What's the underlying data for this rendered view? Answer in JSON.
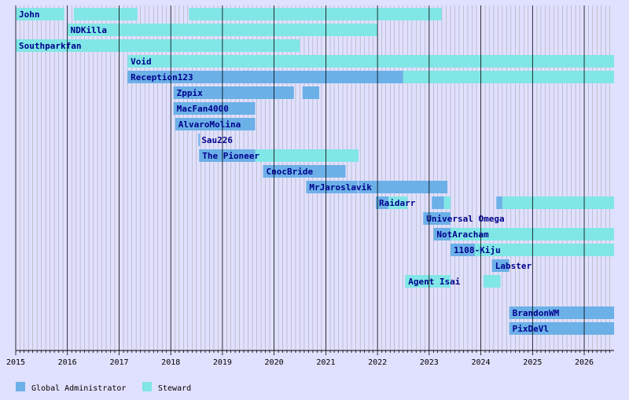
{
  "chart_data": {
    "type": "timeline",
    "x_axis": {
      "range": [
        "2015-01-01",
        "2026-07-31"
      ],
      "ticks": [
        "2015",
        "2016",
        "2017",
        "2018",
        "2019",
        "2020",
        "2021",
        "2022",
        "2023",
        "2024",
        "2025",
        "2026"
      ],
      "minor_grid": "monthly",
      "major_grid": "yearly"
    },
    "legend": {
      "placement": "bottom-left",
      "items": [
        {
          "key": "ga",
          "label": "Global Administrator",
          "color": "#6cb0e8"
        },
        {
          "key": "steward",
          "label": "Steward",
          "color": "#80e6e6"
        }
      ]
    },
    "colors": {
      "background": "#e0e0ff",
      "label_text": "#00008b",
      "ga": "#6cb0e8",
      "steward": "#80e6e6"
    },
    "rows": [
      {
        "name": "John",
        "periods": [
          {
            "role": "steward",
            "start": "2015-01-01",
            "end": "2015-12-10"
          },
          {
            "role": "steward",
            "start": "2016-02-15",
            "end": "2017-05-10"
          },
          {
            "role": "steward",
            "start": "2018-05-10",
            "end": "2023-03-30"
          }
        ]
      },
      {
        "name": "NDKilla",
        "periods": [
          {
            "role": "steward",
            "start": "2016-01-01",
            "end": "2022-01-01"
          }
        ]
      },
      {
        "name": "Southparkfan",
        "periods": [
          {
            "role": "steward",
            "start": "2015-01-01",
            "end": "2020-07-01"
          }
        ]
      },
      {
        "name": "Void",
        "periods": [
          {
            "role": "steward",
            "start": "2017-03-01",
            "end": "2026-07-31"
          }
        ]
      },
      {
        "name": "Reception123",
        "periods": [
          {
            "role": "ga",
            "start": "2017-03-01",
            "end": "2022-07-01"
          },
          {
            "role": "steward",
            "start": "2022-07-01",
            "end": "2026-07-31"
          }
        ]
      },
      {
        "name": "Zppix",
        "periods": [
          {
            "role": "ga",
            "start": "2018-01-20",
            "end": "2020-05-20"
          },
          {
            "role": "ga",
            "start": "2020-07-20",
            "end": "2020-11-15"
          }
        ]
      },
      {
        "name": "MacFan4000",
        "periods": [
          {
            "role": "ga",
            "start": "2018-01-20",
            "end": "2019-08-20"
          }
        ]
      },
      {
        "name": "AlvaroMolina",
        "periods": [
          {
            "role": "ga",
            "start": "2018-02-01",
            "end": "2019-08-20"
          }
        ]
      },
      {
        "name": "Sau226",
        "periods": [
          {
            "role": "ga",
            "start": "2018-07-15",
            "end": "2018-07-25"
          }
        ]
      },
      {
        "name": "The Pioneer",
        "periods": [
          {
            "role": "ga",
            "start": "2018-07-20",
            "end": "2019-08-20"
          },
          {
            "role": "steward",
            "start": "2019-08-20",
            "end": "2021-08-20"
          }
        ]
      },
      {
        "name": "CnocBride",
        "periods": [
          {
            "role": "ga",
            "start": "2019-10-15",
            "end": "2021-05-20"
          }
        ]
      },
      {
        "name": "MrJaroslavik",
        "periods": [
          {
            "role": "ga",
            "start": "2020-08-15",
            "end": "2021-08-15"
          },
          {
            "role": "ga",
            "start": "2021-08-20",
            "end": "2023-05-10"
          }
        ]
      },
      {
        "name": "Raidarr",
        "periods": [
          {
            "role": "ga",
            "start": "2021-12-20",
            "end": "2022-03-20"
          },
          {
            "role": "steward",
            "start": "2022-03-20",
            "end": "2022-08-01"
          },
          {
            "role": "ga",
            "start": "2023-01-20",
            "end": "2023-04-15"
          },
          {
            "role": "steward",
            "start": "2023-04-15",
            "end": "2023-06-01"
          },
          {
            "role": "ga",
            "start": "2024-04-20",
            "end": "2024-06-01"
          },
          {
            "role": "steward",
            "start": "2024-06-01",
            "end": "2026-07-31"
          }
        ]
      },
      {
        "name": "Universal Omega",
        "periods": [
          {
            "role": "ga",
            "start": "2022-11-20",
            "end": "2023-06-01"
          }
        ]
      },
      {
        "name": "NotAracham",
        "periods": [
          {
            "role": "ga",
            "start": "2023-02-01",
            "end": "2023-06-01"
          },
          {
            "role": "steward",
            "start": "2023-06-01",
            "end": "2026-07-31"
          }
        ]
      },
      {
        "name": "1108-Kiju",
        "periods": [
          {
            "role": "ga",
            "start": "2023-06-01",
            "end": "2023-11-20"
          },
          {
            "role": "steward",
            "start": "2023-11-20",
            "end": "2026-07-31"
          }
        ]
      },
      {
        "name": "Labster",
        "periods": [
          {
            "role": "ga",
            "start": "2024-03-20",
            "end": "2024-07-20"
          }
        ]
      },
      {
        "name": "Agent Isai",
        "periods": [
          {
            "role": "steward",
            "start": "2022-07-15",
            "end": "2023-06-01"
          },
          {
            "role": "steward",
            "start": "2024-01-20",
            "end": "2024-05-20"
          }
        ]
      },
      {
        "name": "",
        "periods": []
      },
      {
        "name": "BrandonWM",
        "periods": [
          {
            "role": "ga",
            "start": "2024-07-20",
            "end": "2026-07-31"
          }
        ]
      },
      {
        "name": "PixDeVl",
        "periods": [
          {
            "role": "ga",
            "start": "2024-07-20",
            "end": "2026-07-31"
          }
        ]
      }
    ]
  }
}
